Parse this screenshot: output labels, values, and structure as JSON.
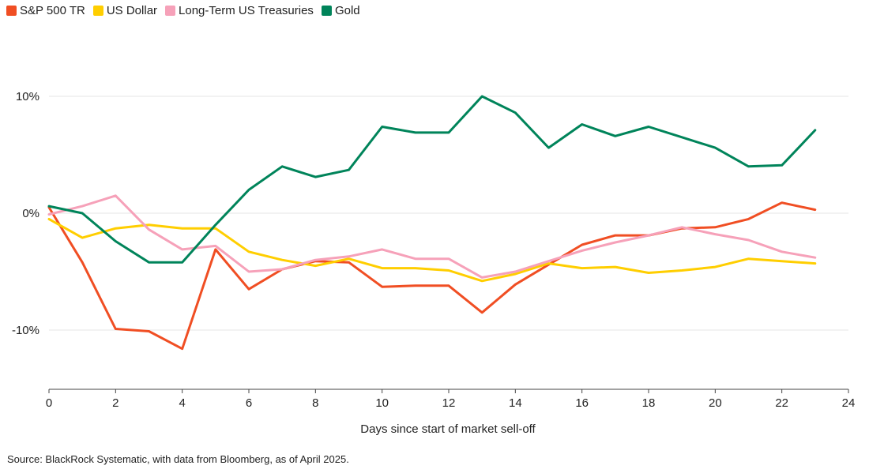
{
  "chart_data": {
    "type": "line",
    "title": "",
    "xlabel": "Days since start of market sell-off",
    "ylabel": "",
    "xlim": [
      0,
      24
    ],
    "ylim": [
      -15,
      13
    ],
    "x_ticks": [
      0,
      2,
      4,
      6,
      8,
      10,
      12,
      14,
      16,
      18,
      20,
      22,
      24
    ],
    "y_ticks": [
      {
        "value": 10,
        "label": "10%"
      },
      {
        "value": 0,
        "label": "0%"
      },
      {
        "value": -10,
        "label": "-10%"
      }
    ],
    "grid": "horizontal",
    "legend_position": "top-left",
    "x": [
      0,
      1,
      2,
      3,
      4,
      5,
      6,
      7,
      8,
      9,
      10,
      11,
      12,
      13,
      14,
      15,
      16,
      17,
      18,
      19,
      20,
      21,
      22,
      23
    ],
    "series": [
      {
        "name": "S&P 500 TR",
        "color": "#f04e23",
        "values": [
          0.5,
          -4.2,
          -9.9,
          -10.1,
          -11.6,
          -3.1,
          -6.5,
          -4.8,
          -4.1,
          -4.2,
          -6.3,
          -6.2,
          -6.2,
          -8.5,
          -6.1,
          -4.4,
          -2.7,
          -1.9,
          -1.9,
          -1.3,
          -1.2,
          -0.5,
          0.9,
          0.3
        ]
      },
      {
        "name": "US Dollar",
        "color": "#ffce00",
        "values": [
          -0.5,
          -2.1,
          -1.3,
          -1.0,
          -1.3,
          -1.3,
          -3.3,
          -4.0,
          -4.5,
          -3.9,
          -4.7,
          -4.7,
          -4.9,
          -5.8,
          -5.2,
          -4.3,
          -4.7,
          -4.6,
          -5.1,
          -4.9,
          -4.6,
          -3.9,
          -4.1,
          -4.3
        ]
      },
      {
        "name": "Long-Term US Treasuries",
        "color": "#f6a1b9",
        "values": [
          -0.1,
          0.6,
          1.5,
          -1.4,
          -3.1,
          -2.8,
          -5.0,
          -4.8,
          -4.0,
          -3.7,
          -3.1,
          -3.9,
          -3.9,
          -5.5,
          -5.0,
          -4.1,
          -3.2,
          -2.5,
          -1.9,
          -1.2,
          -1.8,
          -2.3,
          -3.3,
          -3.8
        ]
      },
      {
        "name": "Gold",
        "color": "#00845a",
        "values": [
          0.6,
          0.0,
          -2.4,
          -4.2,
          -4.2,
          -1.0,
          2.0,
          4.0,
          3.1,
          3.7,
          7.4,
          6.9,
          6.9,
          10.0,
          8.6,
          5.6,
          7.6,
          6.6,
          7.4,
          6.5,
          5.6,
          4.0,
          4.1,
          7.1
        ]
      }
    ]
  },
  "footer": {
    "source": "Source: BlackRock Systematic, with data from Bloomberg, as of April 2025."
  }
}
